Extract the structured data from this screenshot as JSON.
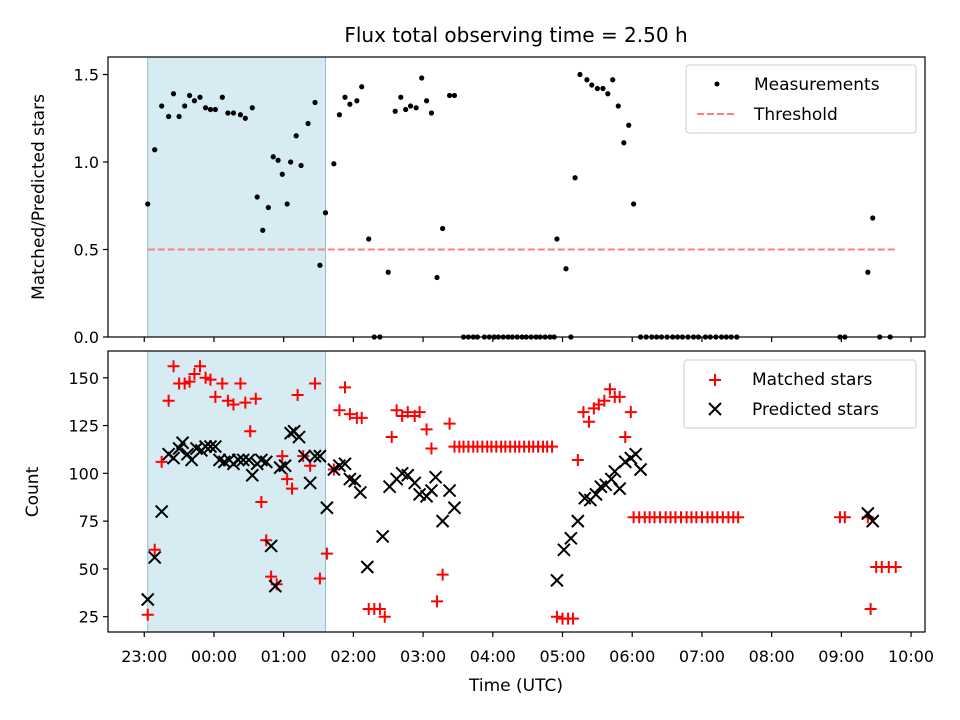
{
  "chart_data": {
    "type": "scatter",
    "title": "Flux total observing time = 2.50 h",
    "xlabel": "Time (UTC)",
    "x_unit": "hours since 23:00 UTC",
    "xlim": [
      -0.52,
      11.2
    ],
    "x_ticks": [
      0,
      1,
      2,
      3,
      4,
      5,
      6,
      7,
      8,
      9,
      10,
      11
    ],
    "x_tick_labels": [
      "23:00",
      "00:00",
      "01:00",
      "02:00",
      "03:00",
      "04:00",
      "05:00",
      "06:00",
      "07:00",
      "08:00",
      "09:00",
      "10:00"
    ],
    "shaded_interval": [
      0.05,
      2.6
    ],
    "top": {
      "ylabel": "Matched/Predicted stars",
      "ylim": [
        0,
        1.6
      ],
      "y_ticks": [
        0.0,
        0.5,
        1.0,
        1.5
      ],
      "y_tick_labels": [
        "0.0",
        "0.5",
        "1.0",
        "1.5"
      ],
      "legend": [
        "Measurements",
        "Threshold"
      ],
      "threshold": {
        "value": 0.5,
        "x_range": [
          0.05,
          10.8
        ]
      },
      "measurements": [
        [
          0.05,
          0.76
        ],
        [
          0.15,
          1.07
        ],
        [
          0.25,
          1.32
        ],
        [
          0.35,
          1.26
        ],
        [
          0.42,
          1.39
        ],
        [
          0.5,
          1.26
        ],
        [
          0.58,
          1.32
        ],
        [
          0.65,
          1.38
        ],
        [
          0.72,
          1.35
        ],
        [
          0.8,
          1.37
        ],
        [
          0.88,
          1.31
        ],
        [
          0.95,
          1.3
        ],
        [
          1.02,
          1.3
        ],
        [
          1.12,
          1.37
        ],
        [
          1.2,
          1.28
        ],
        [
          1.28,
          1.28
        ],
        [
          1.38,
          1.27
        ],
        [
          1.45,
          1.25
        ],
        [
          1.55,
          1.31
        ],
        [
          1.62,
          0.8
        ],
        [
          1.7,
          0.61
        ],
        [
          1.78,
          0.74
        ],
        [
          1.85,
          1.03
        ],
        [
          1.92,
          1.01
        ],
        [
          1.98,
          0.93
        ],
        [
          2.05,
          0.76
        ],
        [
          2.1,
          1.0
        ],
        [
          2.18,
          1.15
        ],
        [
          2.25,
          0.98
        ],
        [
          2.35,
          1.22
        ],
        [
          2.45,
          1.34
        ],
        [
          2.52,
          0.41
        ],
        [
          2.6,
          0.71
        ],
        [
          2.72,
          0.99
        ],
        [
          2.8,
          1.27
        ],
        [
          2.88,
          1.37
        ],
        [
          2.95,
          1.33
        ],
        [
          3.05,
          1.35
        ],
        [
          3.12,
          1.43
        ],
        [
          3.22,
          0.56
        ],
        [
          3.3,
          0.0
        ],
        [
          3.38,
          0.0
        ],
        [
          3.5,
          0.37
        ],
        [
          3.6,
          1.29
        ],
        [
          3.68,
          1.37
        ],
        [
          3.75,
          1.3
        ],
        [
          3.82,
          1.32
        ],
        [
          3.9,
          1.31
        ],
        [
          3.98,
          1.48
        ],
        [
          4.05,
          1.35
        ],
        [
          4.12,
          1.28
        ],
        [
          4.2,
          0.34
        ],
        [
          4.28,
          0.62
        ],
        [
          4.38,
          1.38
        ],
        [
          4.45,
          1.38
        ],
        [
          4.58,
          0.0
        ],
        [
          4.65,
          0.0
        ],
        [
          4.72,
          0.0
        ],
        [
          4.78,
          0.0
        ],
        [
          4.88,
          0.0
        ],
        [
          4.95,
          0.0
        ],
        [
          5.02,
          0.0
        ],
        [
          5.08,
          0.0
        ],
        [
          5.15,
          0.0
        ],
        [
          5.22,
          0.0
        ],
        [
          5.28,
          0.0
        ],
        [
          5.35,
          0.0
        ],
        [
          5.42,
          0.0
        ],
        [
          5.48,
          0.0
        ],
        [
          5.55,
          0.0
        ],
        [
          5.62,
          0.0
        ],
        [
          5.68,
          0.0
        ],
        [
          5.75,
          0.0
        ],
        [
          5.82,
          0.0
        ],
        [
          5.88,
          0.0
        ],
        [
          5.92,
          0.56
        ],
        [
          6.05,
          0.39
        ],
        [
          6.12,
          0.0
        ],
        [
          6.18,
          0.91
        ],
        [
          6.25,
          1.5
        ],
        [
          6.35,
          1.47
        ],
        [
          6.42,
          1.44
        ],
        [
          6.5,
          1.42
        ],
        [
          6.58,
          1.42
        ],
        [
          6.65,
          1.39
        ],
        [
          6.72,
          1.47
        ],
        [
          6.8,
          1.32
        ],
        [
          6.88,
          1.11
        ],
        [
          6.95,
          1.21
        ],
        [
          7.02,
          0.76
        ],
        [
          7.12,
          0.0
        ],
        [
          7.2,
          0.0
        ],
        [
          7.28,
          0.0
        ],
        [
          7.35,
          0.0
        ],
        [
          7.42,
          0.0
        ],
        [
          7.5,
          0.0
        ],
        [
          7.58,
          0.0
        ],
        [
          7.65,
          0.0
        ],
        [
          7.72,
          0.0
        ],
        [
          7.8,
          0.0
        ],
        [
          7.88,
          0.0
        ],
        [
          7.95,
          0.0
        ],
        [
          8.05,
          0.0
        ],
        [
          8.12,
          0.0
        ],
        [
          8.2,
          0.0
        ],
        [
          8.28,
          0.0
        ],
        [
          8.35,
          0.0
        ],
        [
          8.42,
          0.0
        ],
        [
          8.5,
          0.0
        ],
        [
          9.98,
          0.0
        ],
        [
          10.05,
          0.0
        ],
        [
          10.38,
          0.37
        ],
        [
          10.45,
          0.68
        ],
        [
          10.55,
          0.0
        ],
        [
          10.7,
          0.0
        ]
      ]
    },
    "bottom": {
      "ylabel": "Count",
      "ylim": [
        17,
        164
      ],
      "y_ticks": [
        25,
        50,
        75,
        100,
        125,
        150
      ],
      "y_tick_labels": [
        "25",
        "50",
        "75",
        "100",
        "125",
        "150"
      ],
      "legend": [
        "Matched stars",
        "Predicted stars"
      ],
      "matched": [
        [
          0.05,
          26
        ],
        [
          0.15,
          60
        ],
        [
          0.25,
          106
        ],
        [
          0.35,
          138
        ],
        [
          0.42,
          156
        ],
        [
          0.5,
          147
        ],
        [
          0.58,
          147
        ],
        [
          0.65,
          148
        ],
        [
          0.72,
          152
        ],
        [
          0.8,
          156
        ],
        [
          0.88,
          150
        ],
        [
          0.95,
          149
        ],
        [
          1.02,
          140
        ],
        [
          1.12,
          147
        ],
        [
          1.2,
          138
        ],
        [
          1.28,
          136
        ],
        [
          1.38,
          147
        ],
        [
          1.45,
          137
        ],
        [
          1.52,
          122
        ],
        [
          1.6,
          139
        ],
        [
          1.68,
          85
        ],
        [
          1.75,
          65
        ],
        [
          1.82,
          46
        ],
        [
          1.9,
          42
        ],
        [
          1.98,
          109
        ],
        [
          2.05,
          97
        ],
        [
          2.12,
          92
        ],
        [
          2.2,
          141
        ],
        [
          2.28,
          109
        ],
        [
          2.38,
          104
        ],
        [
          2.45,
          147
        ],
        [
          2.52,
          45
        ],
        [
          2.62,
          58
        ],
        [
          2.72,
          102
        ],
        [
          2.8,
          133
        ],
        [
          2.88,
          145
        ],
        [
          2.95,
          131
        ],
        [
          3.05,
          129
        ],
        [
          3.12,
          129
        ],
        [
          3.22,
          29
        ],
        [
          3.3,
          29
        ],
        [
          3.38,
          29
        ],
        [
          3.45,
          25
        ],
        [
          3.55,
          119
        ],
        [
          3.62,
          133
        ],
        [
          3.7,
          130
        ],
        [
          3.78,
          132
        ],
        [
          3.88,
          130
        ],
        [
          3.95,
          132
        ],
        [
          4.05,
          123
        ],
        [
          4.12,
          113
        ],
        [
          4.2,
          33
        ],
        [
          4.28,
          47
        ],
        [
          4.38,
          126
        ],
        [
          4.45,
          114
        ],
        [
          4.52,
          114
        ],
        [
          4.58,
          114
        ],
        [
          4.65,
          114
        ],
        [
          4.72,
          114
        ],
        [
          4.78,
          114
        ],
        [
          4.85,
          114
        ],
        [
          4.92,
          114
        ],
        [
          4.98,
          114
        ],
        [
          5.05,
          114
        ],
        [
          5.12,
          114
        ],
        [
          5.18,
          114
        ],
        [
          5.25,
          114
        ],
        [
          5.32,
          114
        ],
        [
          5.38,
          114
        ],
        [
          5.45,
          114
        ],
        [
          5.52,
          114
        ],
        [
          5.58,
          114
        ],
        [
          5.65,
          114
        ],
        [
          5.72,
          114
        ],
        [
          5.78,
          114
        ],
        [
          5.85,
          114
        ],
        [
          5.92,
          25
        ],
        [
          6.0,
          24
        ],
        [
          6.08,
          24
        ],
        [
          6.15,
          24
        ],
        [
          6.22,
          107
        ],
        [
          6.3,
          132
        ],
        [
          6.38,
          127
        ],
        [
          6.45,
          134
        ],
        [
          6.52,
          136
        ],
        [
          6.6,
          138
        ],
        [
          6.68,
          144
        ],
        [
          6.75,
          140
        ],
        [
          6.82,
          140
        ],
        [
          6.9,
          119
        ],
        [
          6.98,
          132
        ],
        [
          7.02,
          77
        ],
        [
          7.1,
          77
        ],
        [
          7.18,
          77
        ],
        [
          7.25,
          77
        ],
        [
          7.32,
          77
        ],
        [
          7.4,
          77
        ],
        [
          7.48,
          77
        ],
        [
          7.55,
          77
        ],
        [
          7.62,
          77
        ],
        [
          7.7,
          77
        ],
        [
          7.78,
          77
        ],
        [
          7.85,
          77
        ],
        [
          7.92,
          77
        ],
        [
          8.0,
          77
        ],
        [
          8.08,
          77
        ],
        [
          8.15,
          77
        ],
        [
          8.22,
          77
        ],
        [
          8.3,
          77
        ],
        [
          8.38,
          77
        ],
        [
          8.45,
          77
        ],
        [
          8.52,
          77
        ],
        [
          9.98,
          77
        ],
        [
          10.05,
          77
        ],
        [
          10.38,
          77
        ],
        [
          10.42,
          29
        ],
        [
          10.5,
          51
        ],
        [
          10.58,
          51
        ],
        [
          10.68,
          51
        ],
        [
          10.78,
          51
        ]
      ],
      "predicted": [
        [
          0.05,
          34
        ],
        [
          0.15,
          56
        ],
        [
          0.25,
          80
        ],
        [
          0.35,
          110
        ],
        [
          0.42,
          108
        ],
        [
          0.5,
          113
        ],
        [
          0.55,
          116
        ],
        [
          0.62,
          110
        ],
        [
          0.68,
          107
        ],
        [
          0.75,
          113
        ],
        [
          0.82,
          112
        ],
        [
          0.88,
          114
        ],
        [
          0.95,
          114
        ],
        [
          1.02,
          114
        ],
        [
          1.08,
          107
        ],
        [
          1.15,
          106
        ],
        [
          1.22,
          107
        ],
        [
          1.28,
          105
        ],
        [
          1.35,
          107
        ],
        [
          1.42,
          107
        ],
        [
          1.5,
          107
        ],
        [
          1.55,
          99
        ],
        [
          1.62,
          105
        ],
        [
          1.68,
          107
        ],
        [
          1.75,
          106
        ],
        [
          1.82,
          62
        ],
        [
          1.88,
          41
        ],
        [
          1.95,
          103
        ],
        [
          2.02,
          104
        ],
        [
          2.1,
          121
        ],
        [
          2.15,
          122
        ],
        [
          2.22,
          119
        ],
        [
          2.3,
          109
        ],
        [
          2.38,
          95
        ],
        [
          2.45,
          109
        ],
        [
          2.52,
          109
        ],
        [
          2.62,
          82
        ],
        [
          2.72,
          102
        ],
        [
          2.8,
          104
        ],
        [
          2.88,
          105
        ],
        [
          2.95,
          97
        ],
        [
          3.02,
          96
        ],
        [
          3.1,
          90
        ],
        [
          3.2,
          51
        ],
        [
          3.42,
          67
        ],
        [
          3.52,
          93
        ],
        [
          3.62,
          97
        ],
        [
          3.7,
          100
        ],
        [
          3.78,
          99
        ],
        [
          3.88,
          95
        ],
        [
          3.95,
          89
        ],
        [
          4.05,
          88
        ],
        [
          4.12,
          91
        ],
        [
          4.18,
          98
        ],
        [
          4.28,
          75
        ],
        [
          4.38,
          91
        ],
        [
          4.45,
          82
        ],
        [
          5.92,
          44
        ],
        [
          6.02,
          60
        ],
        [
          6.12,
          66
        ],
        [
          6.22,
          75
        ],
        [
          6.32,
          87
        ],
        [
          6.4,
          86
        ],
        [
          6.48,
          89
        ],
        [
          6.55,
          93
        ],
        [
          6.62,
          94
        ],
        [
          6.7,
          97
        ],
        [
          6.75,
          101
        ],
        [
          6.82,
          92
        ],
        [
          6.9,
          106
        ],
        [
          6.98,
          108
        ],
        [
          7.05,
          110
        ],
        [
          7.12,
          102
        ],
        [
          10.38,
          79
        ],
        [
          10.45,
          75
        ]
      ]
    }
  }
}
